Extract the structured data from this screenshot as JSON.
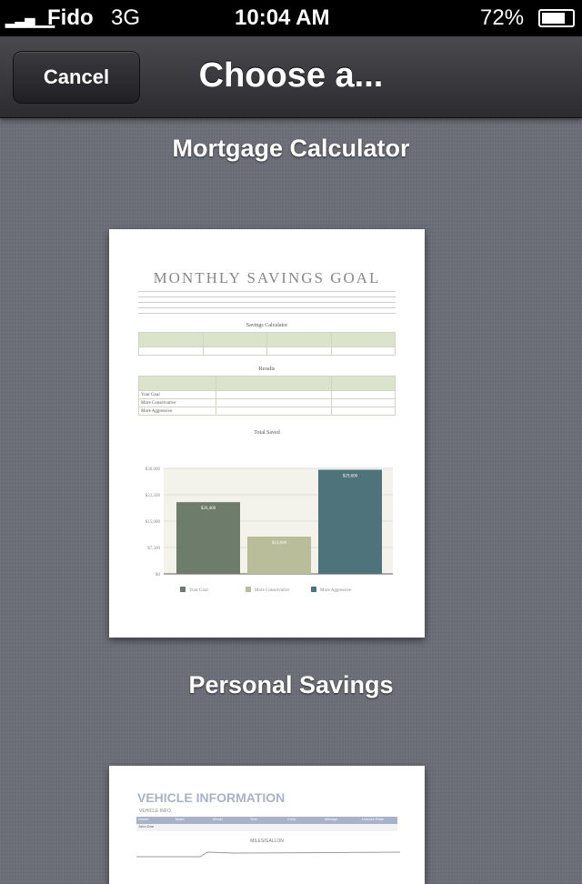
{
  "status": {
    "carrier": "Fido",
    "network": "3G",
    "time": "10:04 AM",
    "battery": "72%",
    "battery_level": 0.72
  },
  "nav": {
    "cancel": "Cancel",
    "title": "Choose a..."
  },
  "templates": [
    {
      "label": "Mortgage Calculator",
      "doc_title": "MONTHLY SAVINGS GOAL",
      "table1_title": "Savings Calculator",
      "table2_title": "Results",
      "chart_title": "Total Saved",
      "rows": [
        "Your Goal",
        "More Conservative",
        "More Aggressive"
      ],
      "chart_data": {
        "type": "bar",
        "title": "Total Saved",
        "categories": [
          "Your Goal",
          "More Conservative",
          "More Aggressive"
        ],
        "values": [
          20400,
          10600,
          29600
        ],
        "yticks": [
          "$0",
          "$7,500",
          "$15,000",
          "$22,500",
          "$30,000"
        ],
        "ylim": [
          0,
          30000
        ],
        "colors": [
          "#6e7c6c",
          "#b9bd99",
          "#4e737a"
        ]
      }
    },
    {
      "label": "Personal Savings",
      "doc_title": "VEHICLE INFORMATION",
      "section": "VEHICLE INFO",
      "headers": [
        "Owner",
        "Make",
        "Model",
        "Year",
        "Color",
        "Mileage",
        "License Plate"
      ],
      "row": [
        "John Doe",
        "",
        "",
        "",
        "",
        "",
        ""
      ],
      "chart_title": "MILES/GALLON"
    }
  ]
}
